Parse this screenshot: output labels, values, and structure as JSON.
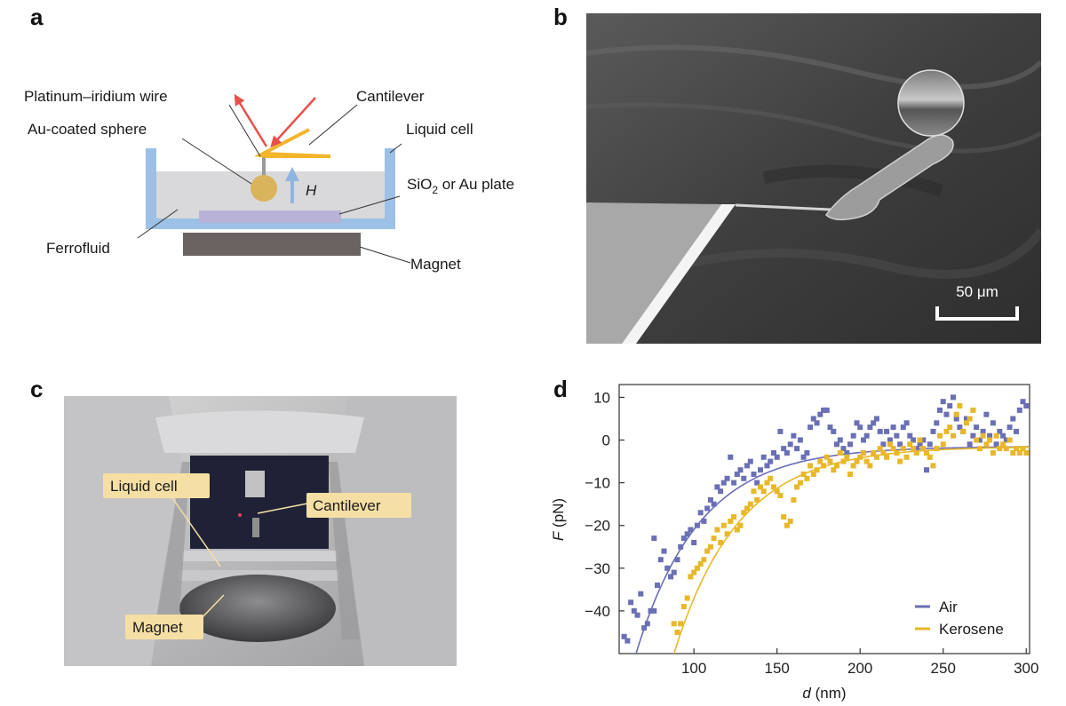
{
  "panels": {
    "a": {
      "letter": "a",
      "labels": {
        "wire": "Platinum–iridium wire",
        "cantilever": "Cantilever",
        "sphere": "Au-coated sphere",
        "liquid_cell": "Liquid cell",
        "field": "H",
        "plate_prefix": "SiO",
        "plate_sub": "2",
        "plate_suffix": " or Au plate",
        "ferrofluid": "Ferrofluid",
        "magnet": "Magnet"
      },
      "colors": {
        "cell_wall": "#9cc0e6",
        "fluid": "#d9d9db",
        "plate": "#b8b3d6",
        "magnet": "#6b6262",
        "sphere": "#d9b45a",
        "cantilever": "#f2b52b",
        "laser": "#e8504a",
        "field_arrow": "#8fb4e0"
      }
    },
    "b": {
      "letter": "b",
      "scale_bar": "50 μm"
    },
    "c": {
      "letter": "c",
      "callouts": {
        "liquid_cell": "Liquid cell",
        "cantilever": "Cantilever",
        "magnet": "Magnet"
      }
    },
    "d": {
      "letter": "d"
    }
  },
  "chart_data": {
    "type": "scatter",
    "xlabel_italic": "d",
    "xlabel_unit": " (nm)",
    "ylabel_italic": "F",
    "ylabel_unit": " (pN)",
    "xlim": [
      55,
      302
    ],
    "ylim": [
      -50,
      13
    ],
    "x_ticks": [
      100,
      150,
      200,
      250,
      300
    ],
    "y_ticks": [
      10,
      0,
      -10,
      -20,
      -30,
      -40
    ],
    "legend_position": "bottom-right",
    "series": [
      {
        "name": "Air",
        "color": "#6b6fb5",
        "points": [
          [
            58,
            -46
          ],
          [
            60,
            -47
          ],
          [
            62,
            -38
          ],
          [
            64,
            -40
          ],
          [
            66,
            -41
          ],
          [
            68,
            -36
          ],
          [
            70,
            -44
          ],
          [
            72,
            -43
          ],
          [
            74,
            -40
          ],
          [
            76,
            -40
          ],
          [
            76,
            -23
          ],
          [
            78,
            -34
          ],
          [
            80,
            -28
          ],
          [
            82,
            -26
          ],
          [
            84,
            -30
          ],
          [
            86,
            -32
          ],
          [
            88,
            -31
          ],
          [
            90,
            -28
          ],
          [
            92,
            -25
          ],
          [
            94,
            -23
          ],
          [
            96,
            -22
          ],
          [
            98,
            -21
          ],
          [
            100,
            -24
          ],
          [
            102,
            -20
          ],
          [
            104,
            -17
          ],
          [
            106,
            -19
          ],
          [
            108,
            -16
          ],
          [
            110,
            -14
          ],
          [
            112,
            -15
          ],
          [
            114,
            -11
          ],
          [
            116,
            -12
          ],
          [
            118,
            -10
          ],
          [
            120,
            -9
          ],
          [
            122,
            -4
          ],
          [
            124,
            -10
          ],
          [
            126,
            -8
          ],
          [
            128,
            -7
          ],
          [
            130,
            -9
          ],
          [
            132,
            -6
          ],
          [
            134,
            -5
          ],
          [
            136,
            -8
          ],
          [
            138,
            -10
          ],
          [
            140,
            -7
          ],
          [
            142,
            -4
          ],
          [
            144,
            -6
          ],
          [
            146,
            -5
          ],
          [
            148,
            -3
          ],
          [
            150,
            -4
          ],
          [
            152,
            2
          ],
          [
            154,
            -2
          ],
          [
            156,
            -3
          ],
          [
            158,
            -1
          ],
          [
            160,
            1
          ],
          [
            162,
            -2
          ],
          [
            164,
            0
          ],
          [
            166,
            -4
          ],
          [
            168,
            -3
          ],
          [
            170,
            3
          ],
          [
            172,
            5
          ],
          [
            174,
            4
          ],
          [
            176,
            6
          ],
          [
            178,
            7
          ],
          [
            180,
            7
          ],
          [
            182,
            3
          ],
          [
            184,
            2
          ],
          [
            186,
            -1
          ],
          [
            188,
            0
          ],
          [
            190,
            -2
          ],
          [
            192,
            -3
          ],
          [
            194,
            -1
          ],
          [
            196,
            1
          ],
          [
            198,
            4
          ],
          [
            200,
            3
          ],
          [
            202,
            0
          ],
          [
            204,
            1
          ],
          [
            206,
            3
          ],
          [
            208,
            4
          ],
          [
            210,
            5
          ],
          [
            212,
            2
          ],
          [
            214,
            -1
          ],
          [
            216,
            2
          ],
          [
            218,
            0
          ],
          [
            220,
            3
          ],
          [
            222,
            1
          ],
          [
            224,
            -1
          ],
          [
            226,
            3
          ],
          [
            228,
            4
          ],
          [
            230,
            1
          ],
          [
            232,
            0
          ],
          [
            234,
            -2
          ],
          [
            236,
            -1
          ],
          [
            238,
            0
          ],
          [
            240,
            -7
          ],
          [
            242,
            -1
          ],
          [
            244,
            2
          ],
          [
            246,
            4
          ],
          [
            248,
            7
          ],
          [
            250,
            9
          ],
          [
            252,
            6
          ],
          [
            254,
            8
          ],
          [
            256,
            10
          ],
          [
            258,
            5
          ],
          [
            260,
            3
          ],
          [
            262,
            2
          ],
          [
            264,
            5
          ],
          [
            266,
            -1
          ],
          [
            268,
            1
          ],
          [
            270,
            3
          ],
          [
            272,
            0
          ],
          [
            274,
            2
          ],
          [
            276,
            6
          ],
          [
            278,
            1
          ],
          [
            280,
            4
          ],
          [
            282,
            -1
          ],
          [
            284,
            2
          ],
          [
            286,
            1
          ],
          [
            288,
            0
          ],
          [
            290,
            3
          ],
          [
            292,
            5
          ],
          [
            294,
            2
          ],
          [
            296,
            7
          ],
          [
            298,
            9
          ],
          [
            300,
            8
          ]
        ]
      },
      {
        "name": "Kerosene",
        "color": "#e8b82a",
        "points": [
          [
            88,
            -43
          ],
          [
            90,
            -45
          ],
          [
            92,
            -43
          ],
          [
            94,
            -39
          ],
          [
            96,
            -37
          ],
          [
            98,
            -32
          ],
          [
            100,
            -31
          ],
          [
            102,
            -30
          ],
          [
            104,
            -29
          ],
          [
            106,
            -28
          ],
          [
            108,
            -26
          ],
          [
            110,
            -25
          ],
          [
            112,
            -23
          ],
          [
            114,
            -21
          ],
          [
            116,
            -24
          ],
          [
            118,
            -20
          ],
          [
            120,
            -22
          ],
          [
            122,
            -19
          ],
          [
            124,
            -18
          ],
          [
            126,
            -21
          ],
          [
            128,
            -20
          ],
          [
            130,
            -17
          ],
          [
            132,
            -16
          ],
          [
            134,
            -15
          ],
          [
            136,
            -12
          ],
          [
            138,
            -14
          ],
          [
            140,
            -11
          ],
          [
            142,
            -12
          ],
          [
            144,
            -10
          ],
          [
            146,
            -9
          ],
          [
            148,
            -11
          ],
          [
            150,
            -12
          ],
          [
            152,
            -13
          ],
          [
            154,
            -18
          ],
          [
            156,
            -20
          ],
          [
            158,
            -19
          ],
          [
            160,
            -14
          ],
          [
            162,
            -11
          ],
          [
            164,
            -10
          ],
          [
            166,
            -8
          ],
          [
            168,
            -9
          ],
          [
            170,
            -6
          ],
          [
            172,
            -8
          ],
          [
            174,
            -7
          ],
          [
            176,
            -5
          ],
          [
            178,
            -6
          ],
          [
            180,
            -4
          ],
          [
            182,
            -5
          ],
          [
            184,
            -7
          ],
          [
            186,
            -6
          ],
          [
            188,
            -3
          ],
          [
            190,
            -5
          ],
          [
            192,
            -4
          ],
          [
            194,
            -8
          ],
          [
            196,
            -6
          ],
          [
            198,
            -5
          ],
          [
            200,
            -4
          ],
          [
            202,
            -3
          ],
          [
            204,
            -5
          ],
          [
            206,
            -6
          ],
          [
            208,
            -3
          ],
          [
            210,
            -4
          ],
          [
            212,
            -2
          ],
          [
            214,
            -3
          ],
          [
            216,
            -4
          ],
          [
            218,
            -1
          ],
          [
            220,
            -2
          ],
          [
            222,
            -3
          ],
          [
            224,
            -5
          ],
          [
            226,
            -2
          ],
          [
            228,
            -4
          ],
          [
            230,
            -1
          ],
          [
            232,
            -2
          ],
          [
            234,
            -3
          ],
          [
            236,
            0
          ],
          [
            238,
            -2
          ],
          [
            240,
            -3
          ],
          [
            242,
            -4
          ],
          [
            244,
            -6
          ],
          [
            246,
            -2
          ],
          [
            248,
            1
          ],
          [
            250,
            -1
          ],
          [
            252,
            2
          ],
          [
            254,
            3
          ],
          [
            256,
            1
          ],
          [
            258,
            6
          ],
          [
            260,
            8
          ],
          [
            262,
            2
          ],
          [
            264,
            4
          ],
          [
            266,
            5
          ],
          [
            268,
            7
          ],
          [
            270,
            0
          ],
          [
            272,
            -2
          ],
          [
            274,
            1
          ],
          [
            276,
            -1
          ],
          [
            278,
            0
          ],
          [
            280,
            -3
          ],
          [
            282,
            1
          ],
          [
            284,
            -2
          ],
          [
            286,
            -1
          ],
          [
            288,
            -2
          ],
          [
            290,
            0
          ],
          [
            292,
            -3
          ],
          [
            294,
            -2
          ],
          [
            296,
            -3
          ],
          [
            298,
            -2
          ],
          [
            300,
            -3
          ]
        ]
      }
    ],
    "fits": [
      {
        "series": "Air",
        "a": -58.5,
        "k": 0.0262,
        "x0": 58
      },
      {
        "series": "Kerosene",
        "a": -48.5,
        "k": 0.0258,
        "x0": 88
      }
    ]
  }
}
